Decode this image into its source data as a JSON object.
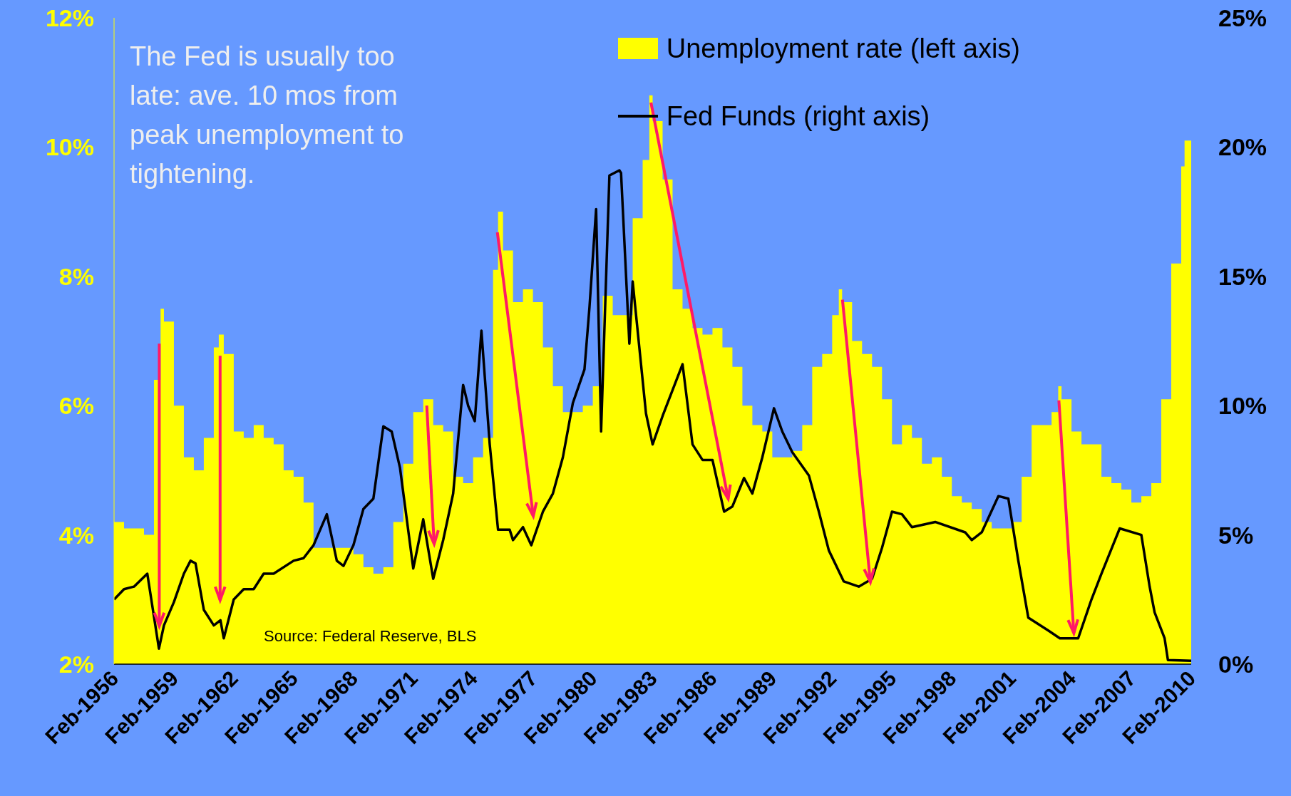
{
  "chart_data": {
    "type": "area",
    "annotations": [
      "The Fed is usually too late: ave. 10 mos from peak unemployment to tightening.",
      "Source: Federal Reserve, BLS"
    ],
    "xlim": [
      "1956-02",
      "2010-02"
    ],
    "xticks": [
      {
        "value": "1956-02",
        "label": "Feb-1956"
      },
      {
        "value": "1959-02",
        "label": "Feb-1959"
      },
      {
        "value": "1962-02",
        "label": "Feb-1962"
      },
      {
        "value": "1965-02",
        "label": "Feb-1965"
      },
      {
        "value": "1968-02",
        "label": "Feb-1968"
      },
      {
        "value": "1971-02",
        "label": "Feb-1971"
      },
      {
        "value": "1974-02",
        "label": "Feb-1974"
      },
      {
        "value": "1977-02",
        "label": "Feb-1977"
      },
      {
        "value": "1980-02",
        "label": "Feb-1980"
      },
      {
        "value": "1983-02",
        "label": "Feb-1983"
      },
      {
        "value": "1986-02",
        "label": "Feb-1986"
      },
      {
        "value": "1989-02",
        "label": "Feb-1989"
      },
      {
        "value": "1992-02",
        "label": "Feb-1992"
      },
      {
        "value": "1995-02",
        "label": "Feb-1995"
      },
      {
        "value": "1998-02",
        "label": "Feb-1998"
      },
      {
        "value": "2001-02",
        "label": "Feb-2001"
      },
      {
        "value": "2004-02",
        "label": "Feb-2004"
      },
      {
        "value": "2007-02",
        "label": "Feb-2007"
      },
      {
        "value": "2010-02",
        "label": "Feb-2010"
      }
    ],
    "ylim": [
      2,
      12
    ],
    "yticks": [
      {
        "value": 2,
        "label": "2%"
      },
      {
        "value": 4,
        "label": "4%"
      },
      {
        "value": 6,
        "label": "6%"
      },
      {
        "value": 8,
        "label": "8%"
      },
      {
        "value": 10,
        "label": "10%"
      },
      {
        "value": 12,
        "label": "12%"
      }
    ],
    "y2lim": [
      0,
      25
    ],
    "y2ticks": [
      {
        "value": 0,
        "label": "0%"
      },
      {
        "value": 5,
        "label": "5%"
      },
      {
        "value": 10,
        "label": "10%"
      },
      {
        "value": 15,
        "label": "15%"
      },
      {
        "value": 20,
        "label": "20%"
      },
      {
        "value": 25,
        "label": "25%"
      }
    ],
    "legend": "top right",
    "marker": "none",
    "line_style": "solid",
    "series": [
      {
        "name": "Unemployment rate (left axis)",
        "color": "#ffff00",
        "x": [
          "1956-02",
          "1956-08",
          "1957-02",
          "1957-08",
          "1958-02",
          "1958-06",
          "1958-08",
          "1959-02",
          "1959-08",
          "1960-02",
          "1960-08",
          "1961-02",
          "1961-05",
          "1961-08",
          "1962-02",
          "1962-08",
          "1963-02",
          "1963-08",
          "1964-02",
          "1964-08",
          "1965-02",
          "1965-08",
          "1966-02",
          "1966-08",
          "1967-02",
          "1967-08",
          "1968-02",
          "1968-08",
          "1969-02",
          "1969-08",
          "1970-02",
          "1970-08",
          "1971-02",
          "1971-08",
          "1972-02",
          "1972-08",
          "1973-02",
          "1973-08",
          "1974-02",
          "1974-08",
          "1975-02",
          "1975-05",
          "1975-08",
          "1976-02",
          "1976-08",
          "1977-02",
          "1977-08",
          "1978-02",
          "1978-08",
          "1979-02",
          "1979-08",
          "1980-02",
          "1980-08",
          "1981-02",
          "1981-08",
          "1982-02",
          "1982-08",
          "1982-12",
          "1983-02",
          "1983-08",
          "1984-02",
          "1984-08",
          "1985-02",
          "1985-08",
          "1986-02",
          "1986-08",
          "1987-02",
          "1987-08",
          "1988-02",
          "1988-08",
          "1989-02",
          "1989-08",
          "1990-02",
          "1990-08",
          "1991-02",
          "1991-08",
          "1992-02",
          "1992-06",
          "1992-08",
          "1993-02",
          "1993-08",
          "1994-02",
          "1994-08",
          "1995-02",
          "1995-08",
          "1996-02",
          "1996-08",
          "1997-02",
          "1997-08",
          "1998-02",
          "1998-08",
          "1999-02",
          "1999-08",
          "2000-02",
          "2000-08",
          "2001-02",
          "2001-08",
          "2002-02",
          "2002-08",
          "2003-02",
          "2003-06",
          "2003-08",
          "2004-02",
          "2004-08",
          "2005-02",
          "2005-08",
          "2006-02",
          "2006-08",
          "2007-02",
          "2007-08",
          "2008-02",
          "2008-08",
          "2009-02",
          "2009-08",
          "2009-10",
          "2010-02"
        ],
        "values": [
          4.2,
          4.1,
          4.1,
          4.0,
          6.4,
          7.5,
          7.3,
          6.0,
          5.2,
          5.0,
          5.5,
          6.9,
          7.1,
          6.8,
          5.6,
          5.5,
          5.7,
          5.5,
          5.4,
          5.0,
          4.9,
          4.5,
          3.8,
          3.8,
          3.8,
          3.8,
          3.7,
          3.5,
          3.4,
          3.5,
          4.2,
          5.1,
          5.9,
          6.1,
          5.7,
          5.6,
          4.9,
          4.8,
          5.2,
          5.5,
          8.1,
          9.0,
          8.4,
          7.6,
          7.8,
          7.6,
          6.9,
          6.3,
          5.9,
          5.9,
          6.0,
          6.3,
          7.7,
          7.4,
          7.4,
          8.9,
          9.8,
          10.8,
          10.4,
          9.5,
          7.8,
          7.5,
          7.2,
          7.1,
          7.2,
          6.9,
          6.6,
          6.0,
          5.7,
          5.6,
          5.2,
          5.2,
          5.3,
          5.7,
          6.6,
          6.8,
          7.4,
          7.8,
          7.6,
          7.0,
          6.8,
          6.6,
          6.1,
          5.4,
          5.7,
          5.5,
          5.1,
          5.2,
          4.9,
          4.6,
          4.5,
          4.4,
          4.2,
          4.1,
          4.1,
          4.2,
          4.9,
          5.7,
          5.7,
          5.9,
          6.3,
          6.1,
          5.6,
          5.4,
          5.4,
          4.9,
          4.8,
          4.7,
          4.5,
          4.6,
          4.8,
          6.1,
          8.2,
          9.7,
          10.1,
          9.7
        ]
      },
      {
        "name": "Fed Funds (right axis)",
        "type": "line",
        "color": "#000000",
        "axis": "y2",
        "x": [
          "1956-02",
          "1956-08",
          "1957-02",
          "1957-10",
          "1958-05",
          "1958-08",
          "1959-02",
          "1959-08",
          "1959-12",
          "1960-03",
          "1960-08",
          "1961-02",
          "1961-06",
          "1961-08",
          "1962-02",
          "1962-08",
          "1963-02",
          "1963-08",
          "1964-02",
          "1965-02",
          "1965-08",
          "1966-02",
          "1966-10",
          "1967-04",
          "1967-08",
          "1968-02",
          "1968-08",
          "1969-02",
          "1969-08",
          "1970-01",
          "1970-06",
          "1971-02",
          "1971-08",
          "1972-02",
          "1972-08",
          "1973-02",
          "1973-08",
          "1973-11",
          "1974-03",
          "1974-07",
          "1974-12",
          "1975-05",
          "1975-12",
          "1976-02",
          "1976-08",
          "1977-01",
          "1977-08",
          "1978-02",
          "1978-08",
          "1979-02",
          "1979-09",
          "1979-12",
          "1980-04",
          "1980-07",
          "1980-12",
          "1981-06",
          "1981-07",
          "1981-12",
          "1982-02",
          "1982-10",
          "1983-02",
          "1983-08",
          "1984-08",
          "1985-02",
          "1985-08",
          "1986-02",
          "1986-09",
          "1987-02",
          "1987-09",
          "1988-02",
          "1988-08",
          "1989-03",
          "1989-08",
          "1990-02",
          "1990-12",
          "1991-06",
          "1991-12",
          "1992-09",
          "1993-06",
          "1994-02",
          "1994-08",
          "1995-02",
          "1995-08",
          "1996-02",
          "1997-04",
          "1998-10",
          "1999-02",
          "1999-08",
          "2000-06",
          "2000-12",
          "2001-06",
          "2001-12",
          "2002-12",
          "2003-07",
          "2004-06",
          "2005-02",
          "2005-08",
          "2006-07",
          "2007-08",
          "2008-01",
          "2008-04",
          "2008-10",
          "2008-12",
          "2010-02"
        ],
        "values": [
          2.5,
          2.9,
          3.0,
          3.5,
          0.6,
          1.5,
          2.4,
          3.5,
          4.0,
          3.9,
          2.1,
          1.5,
          1.7,
          1.0,
          2.5,
          2.9,
          2.9,
          3.5,
          3.5,
          4.0,
          4.1,
          4.6,
          5.8,
          4.0,
          3.8,
          4.6,
          6.0,
          6.4,
          9.2,
          9.0,
          7.6,
          3.7,
          5.6,
          3.3,
          4.8,
          6.6,
          10.8,
          10.0,
          9.4,
          12.9,
          8.5,
          5.2,
          5.2,
          4.8,
          5.3,
          4.6,
          5.9,
          6.6,
          8.0,
          10.1,
          11.4,
          13.8,
          17.6,
          9.0,
          18.9,
          19.1,
          19.0,
          12.4,
          14.8,
          9.7,
          8.5,
          9.6,
          11.6,
          8.5,
          7.9,
          7.9,
          5.9,
          6.1,
          7.2,
          6.6,
          8.0,
          9.9,
          9.0,
          8.2,
          7.3,
          5.9,
          4.4,
          3.2,
          3.0,
          3.3,
          4.5,
          5.9,
          5.8,
          5.3,
          5.5,
          5.1,
          4.8,
          5.1,
          6.5,
          6.4,
          4.0,
          1.8,
          1.3,
          1.0,
          1.0,
          2.5,
          3.5,
          5.25,
          5.0,
          3.0,
          2.0,
          1.0,
          0.16,
          0.13
        ]
      }
    ]
  }
}
